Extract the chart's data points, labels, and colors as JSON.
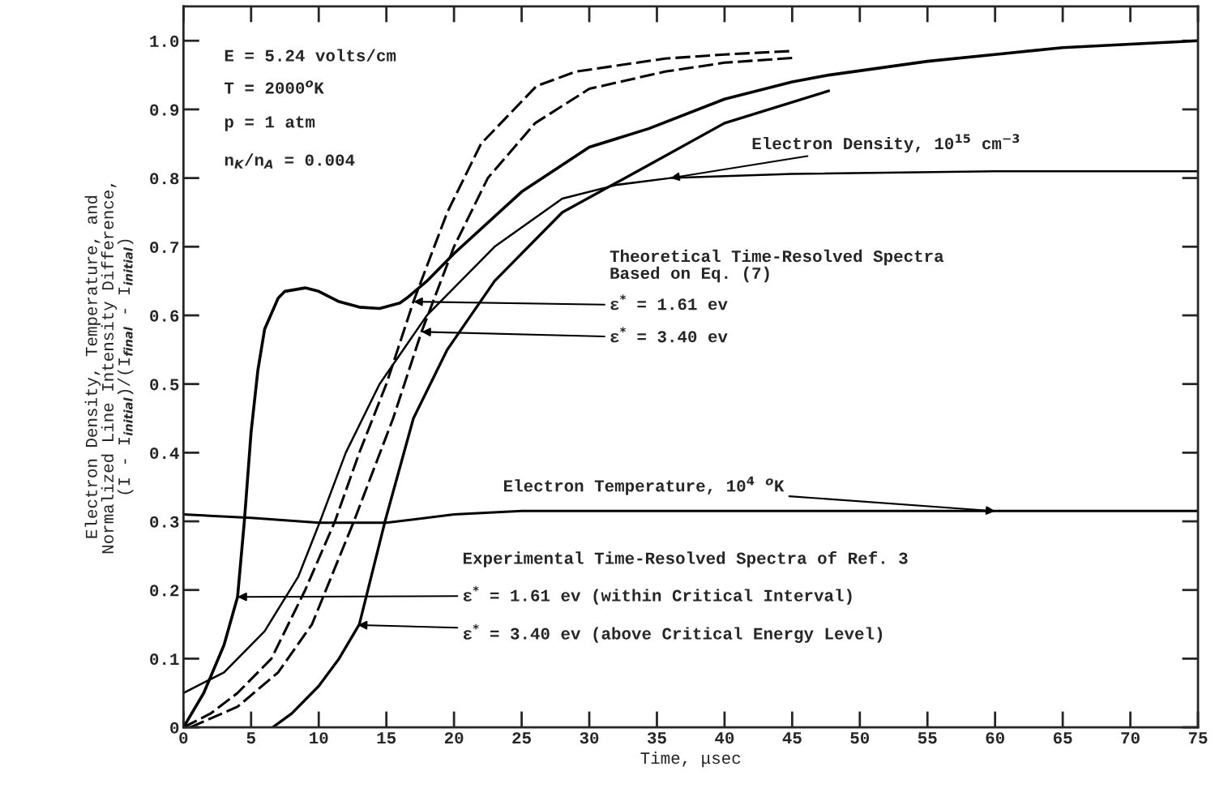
{
  "chart_data": {
    "type": "line",
    "xlabel": "Time, μsec",
    "ylabel": "Electron Density, Temperature, and\nNormalized Line Intensity Difference,\n(I - I$_{initial}$)/(I$_{final}$ - I$_{initial}$)",
    "xlim": [
      0,
      75
    ],
    "ylim": [
      0,
      1.05
    ],
    "xticks": [
      0,
      5,
      10,
      15,
      20,
      25,
      30,
      35,
      40,
      45,
      50,
      55,
      60,
      65,
      70,
      75
    ],
    "yticks": [
      0,
      0.1,
      0.2,
      0.3,
      0.4,
      0.5,
      0.6,
      0.7,
      0.8,
      0.9,
      {
        "value": 1,
        "label": "1.0"
      }
    ],
    "grid": false,
    "legend": false,
    "marker": "none",
    "series": [
      {
        "color": "#000000",
        "line_style": "solid",
        "x": [
          0,
          1.5,
          3,
          4,
          4.5,
          5,
          5.5,
          6,
          7,
          7.5,
          9,
          10,
          11.5,
          13,
          14.5,
          16,
          16.5,
          18,
          20,
          25,
          30,
          34.4,
          40,
          45,
          47.7,
          55,
          61,
          65,
          70,
          75
        ],
        "values": [
          0,
          0.05,
          0.12,
          0.19,
          0.3,
          0.43,
          0.52,
          0.58,
          0.625,
          0.635,
          0.64,
          0.635,
          0.62,
          0.612,
          0.61,
          0.618,
          0.625,
          0.65,
          0.69,
          0.78,
          0.845,
          0.872,
          0.915,
          0.94,
          0.95,
          0.97,
          0.982,
          0.99,
          0.995,
          1.0
        ]
      },
      {
        "color": "#000000",
        "line_style": "solid",
        "x": [
          6.6,
          8,
          10,
          11.5,
          13,
          14.9,
          17,
          19.5,
          23,
          28,
          34.4,
          40,
          47.7
        ],
        "values": [
          0,
          0.02,
          0.06,
          0.1,
          0.15,
          0.3,
          0.45,
          0.55,
          0.65,
          0.75,
          0.819,
          0.88,
          0.927
        ]
      },
      {
        "color": "#000000",
        "line_style": "solid",
        "x": [
          0,
          3,
          6,
          8.5,
          10.1,
          12,
          14.5,
          18,
          23,
          28,
          32,
          36,
          45,
          60,
          75
        ],
        "values": [
          0.05,
          0.08,
          0.14,
          0.22,
          0.3,
          0.4,
          0.5,
          0.6,
          0.7,
          0.77,
          0.79,
          0.8,
          0.806,
          0.81,
          0.81
        ]
      },
      {
        "color": "#000000",
        "line_style": "dashed",
        "x": [
          0,
          2,
          4,
          6.5,
          9,
          11.2,
          13,
          15,
          17,
          19.5,
          22,
          26.1,
          29,
          35.6,
          40,
          45
        ],
        "values": [
          0,
          0.02,
          0.05,
          0.1,
          0.2,
          0.3,
          0.4,
          0.5,
          0.62,
          0.75,
          0.85,
          0.934,
          0.955,
          0.974,
          0.98,
          0.985
        ]
      },
      {
        "color": "#000000",
        "line_style": "dashed",
        "x": [
          0.5,
          4,
          7,
          9.5,
          12.6,
          15.5,
          17.6,
          20,
          22.5,
          26,
          30,
          35.6,
          40,
          45
        ],
        "values": [
          0,
          0.03,
          0.08,
          0.15,
          0.3,
          0.45,
          0.576,
          0.7,
          0.8,
          0.88,
          0.93,
          0.955,
          0.968,
          0.975
        ]
      },
      {
        "color": "#000000",
        "line_style": "solid",
        "x": [
          0,
          5,
          10,
          15,
          20,
          25,
          35,
          50,
          60,
          75
        ],
        "values": [
          0.31,
          0.305,
          0.298,
          0.298,
          0.31,
          0.315,
          0.315,
          0.315,
          0.315,
          0.315
        ]
      }
    ],
    "annotations": [
      "E = 5.24 volts/cm",
      "T = 2000$^{o}$K",
      "p = 1 atm",
      "n$_{K}$/n$_{A}$ = 0.004",
      {
        "text": "Electron Density, 10$^{15}$ cm$^{−3}$",
        "x": 36,
        "y": 0.8
      },
      "Theoretical Time-Resolved Spectra\nBased on Eq. (7)",
      {
        "text": "ε$^{*}$ = 1.61 ev",
        "x": 17,
        "y": 0.62
      },
      {
        "text": "ε$^{*}$ = 3.40 ev",
        "x": 17.6,
        "y": 0.576
      },
      {
        "text": "Electron Temperature, 10$^{4}$ $^{o}$K",
        "x": 60,
        "y": 0.315
      },
      "Experimental Time-Resolved Spectra of Ref. 3",
      {
        "text": "ε$^{*}$ = 1.61 ev (within Critical Interval)",
        "x": 4,
        "y": 0.19
      },
      {
        "text": "ε$^{*}$ = 3.40 ev (above Critical Energy Level)",
        "x": 12.9,
        "y": 0.149
      }
    ]
  }
}
